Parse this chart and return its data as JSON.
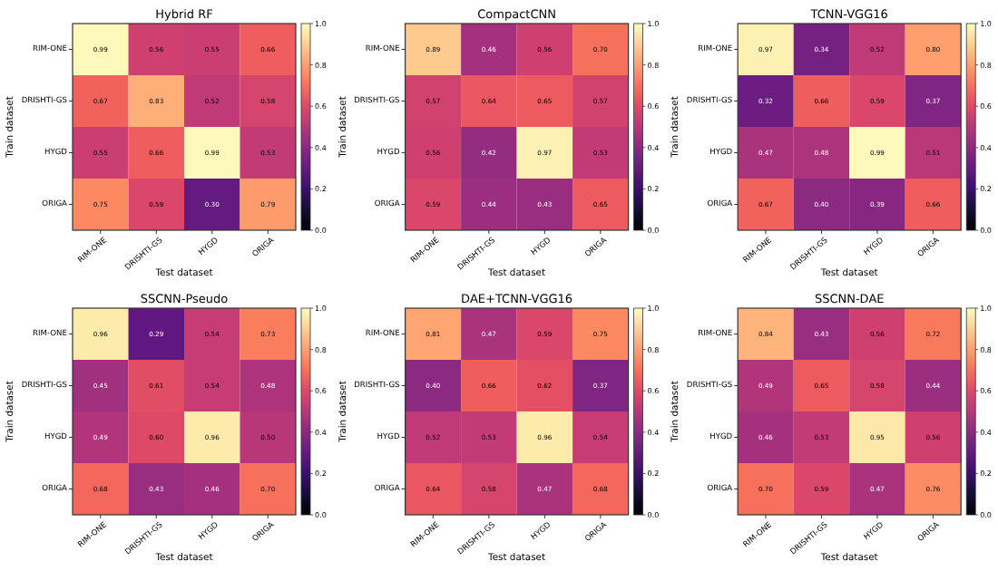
{
  "chart_data": [
    {
      "type": "heatmap",
      "title": "Hybrid RF",
      "xlabel": "Test dataset",
      "ylabel": "Train dataset",
      "categories": [
        "RIM-ONE",
        "DRISHTI-GS",
        "HYGD",
        "ORIGA"
      ],
      "y_categories": [
        "RIM-ONE",
        "DRISHTI-GS",
        "HYGD",
        "ORIGA"
      ],
      "cells": [
        [
          0.99,
          0.56,
          0.55,
          0.66
        ],
        [
          0.67,
          0.83,
          0.52,
          0.58
        ],
        [
          0.55,
          0.66,
          0.99,
          0.53
        ],
        [
          0.75,
          0.59,
          0.3,
          0.79
        ]
      ],
      "cell_labels": [
        [
          "0.99",
          "0.56",
          "0.55",
          "0.66"
        ],
        [
          "0.67",
          "0.83",
          "0.52",
          "0.58"
        ],
        [
          "0.55",
          "0.66",
          "0.99",
          "0.53"
        ],
        [
          "0.75",
          "0.59",
          "0.30",
          "0.79"
        ]
      ],
      "data_labels": true,
      "clim": [
        0,
        1
      ],
      "cticks": [
        {
          "value": 0,
          "label": "0.0"
        },
        {
          "value": 0.2,
          "label": "0.2"
        },
        {
          "value": 0.4,
          "label": "0.4"
        },
        {
          "value": 0.6,
          "label": "0.6"
        },
        {
          "value": 0.8,
          "label": "0.8"
        },
        {
          "value": 1,
          "label": "1.0"
        }
      ]
    },
    {
      "type": "heatmap",
      "title": "CompactCNN",
      "xlabel": "Test dataset",
      "ylabel": "Train dataset",
      "categories": [
        "RIM-ONE",
        "DRISHTI-GS",
        "HYGD",
        "ORIGA"
      ],
      "y_categories": [
        "RIM-ONE",
        "DRISHTI-GS",
        "HYGD",
        "ORIGA"
      ],
      "cells": [
        [
          0.89,
          0.46,
          0.56,
          0.7
        ],
        [
          0.57,
          0.64,
          0.65,
          0.57
        ],
        [
          0.56,
          0.42,
          0.97,
          0.53
        ],
        [
          0.59,
          0.44,
          0.43,
          0.65
        ]
      ],
      "cell_labels": [
        [
          "0.89",
          "0.46",
          "0.56",
          "0.70"
        ],
        [
          "0.57",
          "0.64",
          "0.65",
          "0.57"
        ],
        [
          "0.56",
          "0.42",
          "0.97",
          "0.53"
        ],
        [
          "0.59",
          "0.44",
          "0.43",
          "0.65"
        ]
      ],
      "data_labels": true,
      "clim": [
        0,
        1
      ],
      "cticks": [
        {
          "value": 0,
          "label": "0.0"
        },
        {
          "value": 0.2,
          "label": "0.2"
        },
        {
          "value": 0.4,
          "label": "0.4"
        },
        {
          "value": 0.6,
          "label": "0.6"
        },
        {
          "value": 0.8,
          "label": "0.8"
        },
        {
          "value": 1,
          "label": "1.0"
        }
      ]
    },
    {
      "type": "heatmap",
      "title": "TCNN-VGG16",
      "xlabel": "Test dataset",
      "ylabel": "Train dataset",
      "categories": [
        "RIM-ONE",
        "DRISHTI-GS",
        "HYGD",
        "ORIGA"
      ],
      "y_categories": [
        "RIM-ONE",
        "DRISHTI-GS",
        "HYGD",
        "ORIGA"
      ],
      "cells": [
        [
          0.97,
          0.34,
          0.52,
          0.8
        ],
        [
          0.32,
          0.66,
          0.59,
          0.37
        ],
        [
          0.47,
          0.48,
          0.99,
          0.51
        ],
        [
          0.67,
          0.4,
          0.39,
          0.66
        ]
      ],
      "cell_labels": [
        [
          "0.97",
          "0.34",
          "0.52",
          "0.80"
        ],
        [
          "0.32",
          "0.66",
          "0.59",
          "0.37"
        ],
        [
          "0.47",
          "0.48",
          "0.99",
          "0.51"
        ],
        [
          "0.67",
          "0.40",
          "0.39",
          "0.66"
        ]
      ],
      "data_labels": true,
      "clim": [
        0,
        1
      ],
      "cticks": [
        {
          "value": 0,
          "label": "0.0"
        },
        {
          "value": 0.2,
          "label": "0.2"
        },
        {
          "value": 0.4,
          "label": "0.4"
        },
        {
          "value": 0.6,
          "label": "0.6"
        },
        {
          "value": 0.8,
          "label": "0.8"
        },
        {
          "value": 1,
          "label": "1.0"
        }
      ]
    },
    {
      "type": "heatmap",
      "title": "SSCNN-Pseudo",
      "xlabel": "Test dataset",
      "ylabel": "Train dataset",
      "categories": [
        "RIM-ONE",
        "DRISHTI-GS",
        "HYGD",
        "ORIGA"
      ],
      "y_categories": [
        "RIM-ONE",
        "DRISHTI-GS",
        "HYGD",
        "ORIGA"
      ],
      "cells": [
        [
          0.96,
          0.29,
          0.54,
          0.73
        ],
        [
          0.45,
          0.61,
          0.54,
          0.48
        ],
        [
          0.49,
          0.6,
          0.96,
          0.5
        ],
        [
          0.68,
          0.43,
          0.46,
          0.7
        ]
      ],
      "cell_labels": [
        [
          "0.96",
          "0.29",
          "0.54",
          "0.73"
        ],
        [
          "0.45",
          "0.61",
          "0.54",
          "0.48"
        ],
        [
          "0.49",
          "0.60",
          "0.96",
          "0.50"
        ],
        [
          "0.68",
          "0.43",
          "0.46",
          "0.70"
        ]
      ],
      "data_labels": true,
      "clim": [
        0,
        1
      ],
      "cticks": [
        {
          "value": 0,
          "label": "0.0"
        },
        {
          "value": 0.2,
          "label": "0.2"
        },
        {
          "value": 0.4,
          "label": "0.4"
        },
        {
          "value": 0.6,
          "label": "0.6"
        },
        {
          "value": 0.8,
          "label": "0.8"
        },
        {
          "value": 1,
          "label": "1.0"
        }
      ]
    },
    {
      "type": "heatmap",
      "title": "DAE+TCNN-VGG16",
      "xlabel": "Test dataset",
      "ylabel": "Train dataset",
      "categories": [
        "RIM-ONE",
        "DRISHTI-GS",
        "HYGD",
        "ORIGA"
      ],
      "y_categories": [
        "RIM-ONE",
        "DRISHTI-GS",
        "HYGD",
        "ORIGA"
      ],
      "cells": [
        [
          0.81,
          0.47,
          0.59,
          0.75
        ],
        [
          0.4,
          0.66,
          0.62,
          0.37
        ],
        [
          0.52,
          0.53,
          0.96,
          0.54
        ],
        [
          0.64,
          0.58,
          0.47,
          0.68
        ]
      ],
      "cell_labels": [
        [
          "0.81",
          "0.47",
          "0.59",
          "0.75"
        ],
        [
          "0.40",
          "0.66",
          "0.62",
          "0.37"
        ],
        [
          "0.52",
          "0.53",
          "0.96",
          "0.54"
        ],
        [
          "0.64",
          "0.58",
          "0.47",
          "0.68"
        ]
      ],
      "data_labels": true,
      "clim": [
        0,
        1
      ],
      "cticks": [
        {
          "value": 0,
          "label": "0.0"
        },
        {
          "value": 0.2,
          "label": "0.2"
        },
        {
          "value": 0.4,
          "label": "0.4"
        },
        {
          "value": 0.6,
          "label": "0.6"
        },
        {
          "value": 0.8,
          "label": "0.8"
        },
        {
          "value": 1,
          "label": "1.0"
        }
      ]
    },
    {
      "type": "heatmap",
      "title": "SSCNN-DAE",
      "xlabel": "Test dataset",
      "ylabel": "Train dataset",
      "categories": [
        "RIM-ONE",
        "DRISHTI-GS",
        "HYGD",
        "ORIGA"
      ],
      "y_categories": [
        "RIM-ONE",
        "DRISHTI-GS",
        "HYGD",
        "ORIGA"
      ],
      "cells": [
        [
          0.84,
          0.43,
          0.56,
          0.72
        ],
        [
          0.49,
          0.65,
          0.58,
          0.44
        ],
        [
          0.46,
          0.53,
          0.95,
          0.56
        ],
        [
          0.7,
          0.59,
          0.47,
          0.76
        ]
      ],
      "cell_labels": [
        [
          "0.84",
          "0.43",
          "0.56",
          "0.72"
        ],
        [
          "0.49",
          "0.65",
          "0.58",
          "0.44"
        ],
        [
          "0.46",
          "0.53",
          "0.95",
          "0.56"
        ],
        [
          "0.70",
          "0.59",
          "0.47",
          "0.76"
        ]
      ],
      "data_labels": true,
      "clim": [
        0,
        1
      ],
      "cticks": [
        {
          "value": 0,
          "label": "0.0"
        },
        {
          "value": 0.2,
          "label": "0.2"
        },
        {
          "value": 0.4,
          "label": "0.4"
        },
        {
          "value": 0.6,
          "label": "0.6"
        },
        {
          "value": 0.8,
          "label": "0.8"
        },
        {
          "value": 1,
          "label": "1.0"
        }
      ]
    }
  ]
}
